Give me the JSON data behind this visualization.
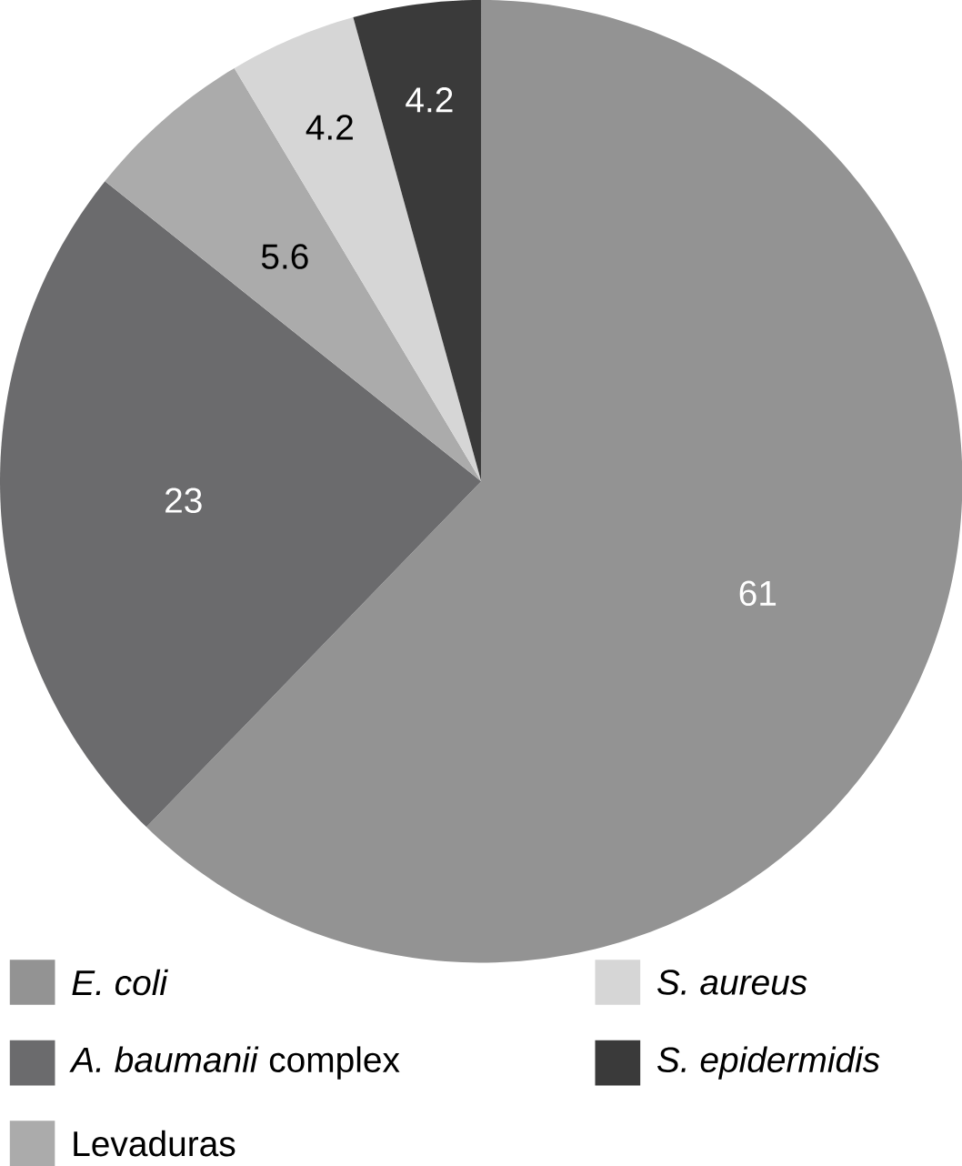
{
  "chart_data": {
    "type": "pie",
    "categories": [
      "*E. coli*",
      "*A. baumanii* complex",
      "Levaduras",
      "*S. aureus*",
      "*S. epidermidis*"
    ],
    "values": [
      61,
      23,
      5.6,
      4.2,
      4.2
    ],
    "colors": [
      "#939393",
      "#6b6b6d",
      "#ababab",
      "#d6d6d6",
      "#3a3a3a"
    ],
    "data_labels": true,
    "legend": "bottom"
  }
}
